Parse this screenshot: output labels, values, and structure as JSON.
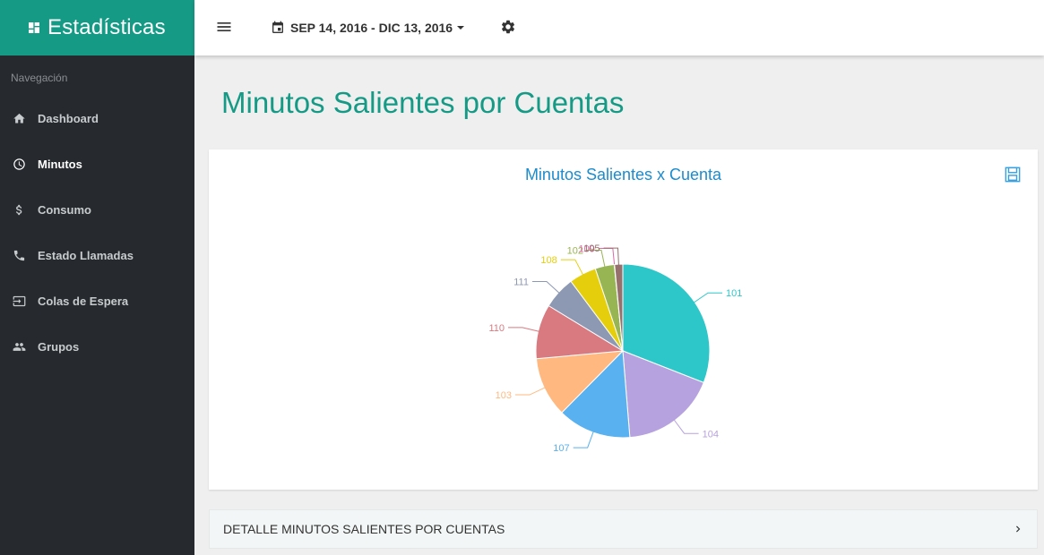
{
  "sidebar": {
    "brand_title": "Estadísticas",
    "nav_heading": "Navegación",
    "items": [
      {
        "label": "Dashboard",
        "icon": "home-icon"
      },
      {
        "label": "Minutos",
        "icon": "clock-icon"
      },
      {
        "label": "Consumo",
        "icon": "dollar-icon"
      },
      {
        "label": "Estado Llamadas",
        "icon": "phone-icon"
      },
      {
        "label": "Colas de Espera",
        "icon": "queue-enter-icon"
      },
      {
        "label": "Grupos",
        "icon": "group-icon"
      }
    ],
    "active_item": "Minutos"
  },
  "topbar": {
    "date_range": "SEP 14, 2016 - DIC 13, 2016"
  },
  "main": {
    "page_title": "Minutos Salientes por Cuentas",
    "detail_label": "DETALLE MINUTOS SALIENTES POR CUENTAS"
  },
  "colors": {
    "brand": "#159a86",
    "sidebar_bg": "#262a2e",
    "chart_title": "#1a8ccf"
  },
  "chart_data": {
    "type": "pie",
    "title": "Minutos Salientes x Cuenta",
    "slices": [
      {
        "label": "101",
        "value": 30.5,
        "color": "#2ec7c9"
      },
      {
        "label": "104",
        "value": 17.5,
        "color": "#b6a2de"
      },
      {
        "label": "107",
        "value": 13.5,
        "color": "#5ab1ef"
      },
      {
        "label": "103",
        "value": 11.0,
        "color": "#ffb980"
      },
      {
        "label": "110",
        "value": 10.0,
        "color": "#d87a80"
      },
      {
        "label": "111",
        "value": 6.0,
        "color": "#8d98b3"
      },
      {
        "label": "108",
        "value": 5.0,
        "color": "#e5cf0d"
      },
      {
        "label": "102",
        "value": 3.5,
        "color": "#97b552"
      },
      {
        "label": "109",
        "value": 0.05,
        "color": "#dc69aa"
      },
      {
        "label": "105",
        "value": 1.5,
        "color": "#95706d"
      }
    ]
  }
}
